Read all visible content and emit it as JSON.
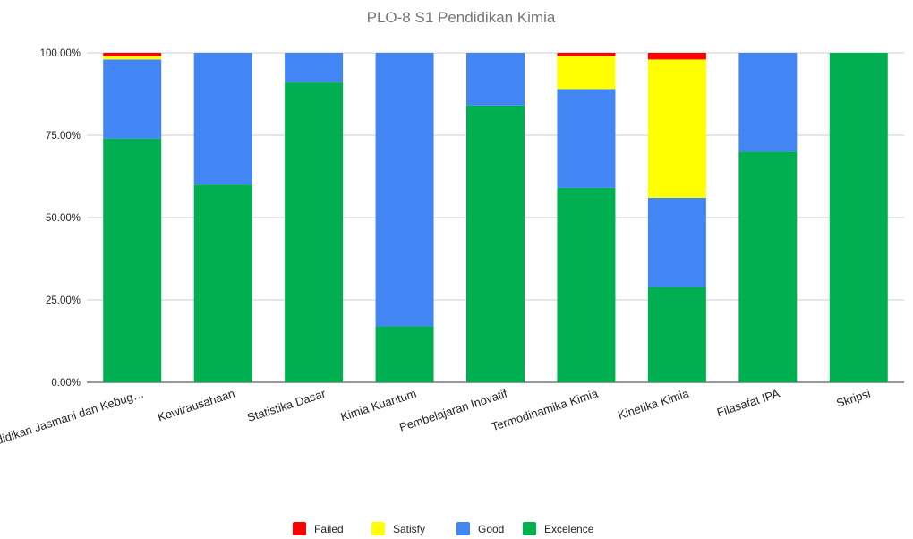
{
  "chart_data": {
    "type": "bar",
    "stacked": true,
    "normalized_percent": true,
    "title": "PLO-8 S1 Pendidikan Kimia",
    "xlabel": "",
    "ylabel": "",
    "ylim": [
      0,
      1
    ],
    "yticks": [
      "0.00%",
      "25.00%",
      "50.00%",
      "75.00%",
      "100.00%"
    ],
    "grid": true,
    "legend_position": "bottom",
    "categories": [
      "Pendidikan Jasmani dan Kebug…",
      "Kewirausahaan",
      "Statistika Dasar",
      "Kimia Kuantum",
      "Pembelajaran Inovatif",
      "Termodinamika Kimia",
      "Kinetika Kimia",
      "Filasafat IPA",
      "Skripsi"
    ],
    "series": [
      {
        "name": "Excelence",
        "color": "#00b050",
        "values": [
          0.74,
          0.6,
          0.91,
          0.17,
          0.84,
          0.59,
          0.29,
          0.7,
          1.0
        ]
      },
      {
        "name": "Good",
        "color": "#4285f4",
        "values": [
          0.24,
          0.4,
          0.09,
          0.83,
          0.16,
          0.3,
          0.27,
          0.3,
          0.0
        ]
      },
      {
        "name": "Satisfy",
        "color": "#ffff00",
        "values": [
          0.01,
          0.0,
          0.0,
          0.0,
          0.0,
          0.1,
          0.42,
          0.0,
          0.0
        ]
      },
      {
        "name": "Failed",
        "color": "#ff0000",
        "values": [
          0.01,
          0.0,
          0.0,
          0.0,
          0.0,
          0.01,
          0.02,
          0.0,
          0.0
        ]
      }
    ],
    "legend_order": [
      "Failed",
      "Satisfy",
      "Good",
      "Excelence"
    ]
  }
}
